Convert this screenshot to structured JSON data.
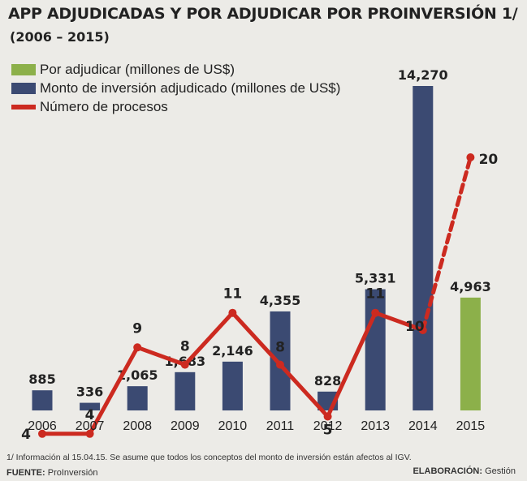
{
  "header": {
    "title": "APP ADJUDICADAS Y POR ADJUDICAR POR PROINVERSIÓN 1/",
    "subtitle": "(2006 – 2015)"
  },
  "legend": [
    {
      "label": "Por adjudicar (millones de US$)",
      "color": "#8cb04a",
      "kind": "bar"
    },
    {
      "label": "Monto de inversión adjudicado (millones de US$)",
      "color": "#3b4a72",
      "kind": "bar"
    },
    {
      "label": "Número de procesos",
      "color": "#cc2a20",
      "kind": "line"
    }
  ],
  "chart_data": {
    "type": "bar",
    "categories": [
      "2006",
      "2007",
      "2008",
      "2009",
      "2010",
      "2011",
      "2012",
      "2013",
      "2014",
      "2015"
    ],
    "series": [
      {
        "name": "Monto de inversión adjudicado (millones de US$)",
        "type": "bar",
        "color": "#3b4a72",
        "values": [
          885,
          336,
          1065,
          1683,
          2146,
          4355,
          828,
          5331,
          14270,
          null
        ],
        "labels": [
          "885",
          "336",
          "1,065",
          "1,683",
          "2,146",
          "4,355",
          "828",
          "5,331",
          "14,270",
          ""
        ]
      },
      {
        "name": "Por adjudicar (millones de US$)",
        "type": "bar",
        "color": "#8cb04a",
        "values": [
          null,
          null,
          null,
          null,
          null,
          null,
          null,
          null,
          null,
          4963
        ],
        "labels": [
          "",
          "",
          "",
          "",
          "",
          "",
          "",
          "",
          "",
          "4,963"
        ]
      },
      {
        "name": "Número de procesos",
        "type": "line",
        "color": "#cc2a20",
        "values": [
          4,
          4,
          9,
          8,
          11,
          8,
          5,
          11,
          10,
          20
        ],
        "labels": [
          "4",
          "4",
          "9",
          "8",
          "11",
          "8",
          "5",
          "11",
          "10",
          "20"
        ],
        "dashed_from_index": 8
      }
    ]
  },
  "footer": {
    "note": "1/ Información al 15.04.15. Se asume que todos los conceptos del monto de inversión están afectos al IGV.",
    "source_label": "FUENTE:",
    "source_value": "ProInversión",
    "credit_label": "ELABORACIÓN:",
    "credit_value": "Gestión"
  }
}
